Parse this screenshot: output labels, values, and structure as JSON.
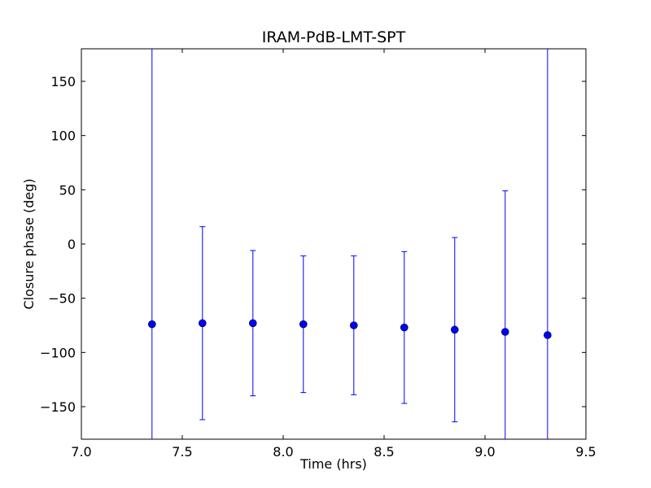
{
  "chart_data": {
    "type": "scatter",
    "title": "IRAM-PdB-LMT-SPT",
    "xlabel": "Time (hrs)",
    "ylabel": "Closure phase (deg)",
    "xlim": [
      7.0,
      9.5
    ],
    "ylim": [
      -180,
      180
    ],
    "xticks": [
      7.0,
      7.5,
      8.0,
      8.5,
      9.0,
      9.5
    ],
    "xtick_labels": [
      "7.0",
      "7.5",
      "8.0",
      "8.5",
      "9.0",
      "9.5"
    ],
    "yticks": [
      -150,
      -100,
      -50,
      0,
      50,
      100,
      150
    ],
    "ytick_labels": [
      "−150",
      "−100",
      "−50",
      "0",
      "50",
      "100",
      "150"
    ],
    "grid": false,
    "colors": {
      "marker": "#0000ff",
      "errorbar": "#0000ff"
    },
    "series": [
      {
        "points": [
          {
            "x": 7.35,
            "y": -74,
            "err_low": -180,
            "err_high": 180
          },
          {
            "x": 7.6,
            "y": -73,
            "err_low": -162,
            "err_high": 16
          },
          {
            "x": 7.85,
            "y": -73,
            "err_low": -140,
            "err_high": -6
          },
          {
            "x": 8.1,
            "y": -74,
            "err_low": -137,
            "err_high": -11
          },
          {
            "x": 8.35,
            "y": -75,
            "err_low": -139,
            "err_high": -11
          },
          {
            "x": 8.6,
            "y": -77,
            "err_low": -147,
            "err_high": -7
          },
          {
            "x": 8.85,
            "y": -79,
            "err_low": -164,
            "err_high": 6
          },
          {
            "x": 9.1,
            "y": -81,
            "err_low": -180,
            "err_high": 49
          },
          {
            "x": 9.31,
            "y": -84,
            "err_low": -180,
            "err_high": 180
          }
        ]
      }
    ]
  }
}
